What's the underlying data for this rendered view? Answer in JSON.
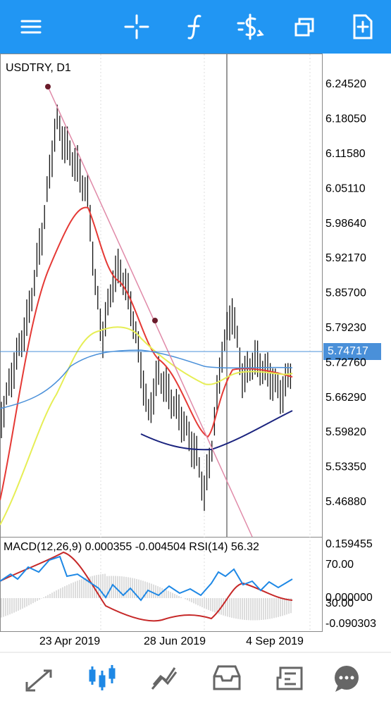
{
  "symbol_label": "USDTRY, D1",
  "price_scale": [
    "6.24520",
    "6.18050",
    "6.11580",
    "6.05110",
    "5.98640",
    "5.92170",
    "5.85700",
    "5.79230",
    "5.72760",
    "5.66290",
    "5.59820",
    "5.53350",
    "5.46880"
  ],
  "current_price": "5.74717",
  "indicator_header": "MACD(12,26,9) 0.000355 -0.004504 RSI(14) 56.32",
  "indicator_scale": [
    "0.159455",
    "70.00",
    "0.000000",
    "30.00",
    "-0.090303"
  ],
  "date_labels": [
    "23 Apr 2019",
    "28 Jun 2019",
    "4 Sep 2019"
  ]
}
